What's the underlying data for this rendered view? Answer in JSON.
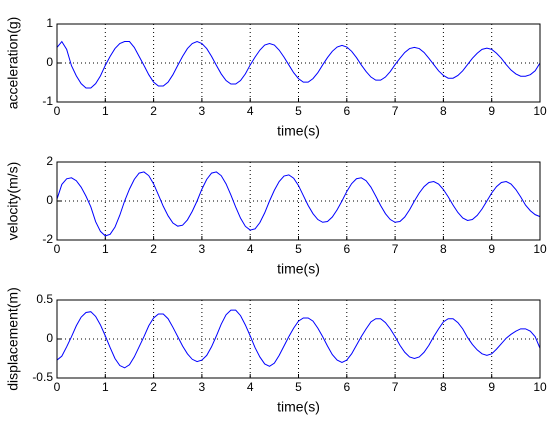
{
  "chart_data": [
    {
      "type": "line",
      "ylabel": "acceleration(g)",
      "xlabel": "time(s)",
      "x": [
        0,
        0.1,
        0.2,
        0.3,
        0.4,
        0.5,
        0.6,
        0.7,
        0.8,
        0.9,
        1,
        1.1,
        1.2,
        1.3,
        1.4,
        1.5,
        1.6,
        1.7,
        1.8,
        1.9,
        2,
        2.1,
        2.2,
        2.3,
        2.4,
        2.5,
        2.6,
        2.7,
        2.8,
        2.9,
        3,
        3.1,
        3.2,
        3.3,
        3.4,
        3.5,
        3.6,
        3.7,
        3.8,
        3.9,
        4,
        4.1,
        4.2,
        4.3,
        4.4,
        4.5,
        4.6,
        4.7,
        4.8,
        4.9,
        5,
        5.1,
        5.2,
        5.3,
        5.4,
        5.5,
        5.6,
        5.7,
        5.8,
        5.9,
        6,
        6.1,
        6.2,
        6.3,
        6.4,
        6.5,
        6.6,
        6.7,
        6.8,
        6.9,
        7,
        7.1,
        7.2,
        7.3,
        7.4,
        7.5,
        7.6,
        7.7,
        7.8,
        7.9,
        8,
        8.1,
        8.2,
        8.3,
        8.4,
        8.5,
        8.6,
        8.7,
        8.8,
        8.9,
        9,
        9.1,
        9.2,
        9.3,
        9.4,
        9.5,
        9.6,
        9.7,
        9.8,
        9.9,
        10
      ],
      "series": [
        {
          "color": "#0000ff",
          "values": [
            0.4,
            0.55,
            0.35,
            -0.07,
            -0.33,
            -0.53,
            -0.64,
            -0.64,
            -0.53,
            -0.33,
            -0.06,
            0.17,
            0.37,
            0.5,
            0.55,
            0.55,
            0.4,
            0.17,
            -0.06,
            -0.3,
            -0.49,
            -0.59,
            -0.59,
            -0.49,
            -0.3,
            -0.06,
            0.17,
            0.37,
            0.5,
            0.55,
            0.5,
            0.37,
            0.17,
            -0.06,
            -0.28,
            -0.45,
            -0.54,
            -0.54,
            -0.45,
            -0.28,
            -0.05,
            0.15,
            0.33,
            0.46,
            0.5,
            0.46,
            0.33,
            0.15,
            -0.05,
            -0.25,
            -0.4,
            -0.49,
            -0.49,
            -0.4,
            -0.25,
            -0.05,
            0.14,
            0.3,
            0.41,
            0.45,
            0.41,
            0.3,
            0.14,
            -0.05,
            -0.22,
            -0.36,
            -0.44,
            -0.44,
            -0.36,
            -0.22,
            -0.04,
            0.12,
            0.27,
            0.37,
            0.4,
            0.37,
            0.27,
            0.12,
            -0.04,
            -0.2,
            -0.32,
            -0.39,
            -0.39,
            -0.32,
            -0.2,
            -0.04,
            0.12,
            0.25,
            0.35,
            0.38,
            0.35,
            0.25,
            0.12,
            -0.04,
            -0.18,
            -0.28,
            -0.34,
            -0.34,
            -0.3,
            -0.2,
            0.0
          ]
        }
      ],
      "xlim": [
        0,
        10
      ],
      "xticks": [
        0,
        1,
        2,
        3,
        4,
        5,
        6,
        7,
        8,
        9,
        10
      ],
      "ylim": [
        -1,
        1
      ],
      "yticks": [
        -1,
        0,
        1
      ],
      "grid": true
    },
    {
      "type": "line",
      "ylabel": "velocity(m/s)",
      "xlabel": "time(s)",
      "x": [
        0,
        0.1,
        0.2,
        0.3,
        0.4,
        0.5,
        0.6,
        0.7,
        0.8,
        0.9,
        1,
        1.1,
        1.2,
        1.3,
        1.4,
        1.5,
        1.6,
        1.7,
        1.8,
        1.9,
        2,
        2.1,
        2.2,
        2.3,
        2.4,
        2.5,
        2.6,
        2.7,
        2.8,
        2.9,
        3,
        3.1,
        3.2,
        3.3,
        3.4,
        3.5,
        3.6,
        3.7,
        3.8,
        3.9,
        4,
        4.1,
        4.2,
        4.3,
        4.4,
        4.5,
        4.6,
        4.7,
        4.8,
        4.9,
        5,
        5.1,
        5.2,
        5.3,
        5.4,
        5.5,
        5.6,
        5.7,
        5.8,
        5.9,
        6,
        6.1,
        6.2,
        6.3,
        6.4,
        6.5,
        6.6,
        6.7,
        6.8,
        6.9,
        7,
        7.1,
        7.2,
        7.3,
        7.4,
        7.5,
        7.6,
        7.7,
        7.8,
        7.9,
        8,
        8.1,
        8.2,
        8.3,
        8.4,
        8.5,
        8.6,
        8.7,
        8.8,
        8.9,
        9,
        9.1,
        9.2,
        9.3,
        9.4,
        9.5,
        9.6,
        9.7,
        9.8,
        9.9,
        10
      ],
      "series": [
        {
          "color": "#0000ff",
          "values": [
            0.1,
            0.85,
            1.14,
            1.19,
            1.04,
            0.71,
            0.25,
            -0.3,
            -1.06,
            -1.56,
            -1.79,
            -1.71,
            -1.34,
            -0.73,
            0.0,
            0.61,
            1.11,
            1.43,
            1.49,
            1.3,
            0.88,
            0.31,
            -0.27,
            -0.76,
            -1.13,
            -1.29,
            -1.24,
            -0.97,
            -0.53,
            0.0,
            0.61,
            1.11,
            1.43,
            1.49,
            1.3,
            0.88,
            0.31,
            -0.31,
            -0.88,
            -1.3,
            -1.49,
            -1.43,
            -1.11,
            -0.61,
            0.0,
            0.55,
            1.0,
            1.28,
            1.34,
            1.17,
            0.79,
            0.28,
            -0.23,
            -0.65,
            -0.95,
            -1.09,
            -1.05,
            -0.82,
            -0.45,
            0.0,
            0.49,
            0.89,
            1.14,
            1.19,
            1.04,
            0.71,
            0.25,
            -0.23,
            -0.65,
            -0.95,
            -1.09,
            -1.05,
            -0.82,
            -0.45,
            0.0,
            0.41,
            0.74,
            0.95,
            1.0,
            0.87,
            0.59,
            0.21,
            -0.21,
            -0.59,
            -0.87,
            -1.0,
            -0.95,
            -0.74,
            -0.41,
            0.0,
            0.41,
            0.74,
            0.95,
            1.0,
            0.87,
            0.59,
            0.21,
            -0.21,
            -0.5,
            -0.7,
            -0.8
          ]
        }
      ],
      "xlim": [
        0,
        10
      ],
      "xticks": [
        0,
        1,
        2,
        3,
        4,
        5,
        6,
        7,
        8,
        9,
        10
      ],
      "ylim": [
        -2,
        2
      ],
      "yticks": [
        -2,
        0,
        2
      ],
      "grid": true
    },
    {
      "type": "line",
      "ylabel": "displacement(m)",
      "xlabel": "time(s)",
      "x": [
        0,
        0.1,
        0.2,
        0.3,
        0.4,
        0.5,
        0.6,
        0.7,
        0.8,
        0.9,
        1,
        1.1,
        1.2,
        1.3,
        1.4,
        1.5,
        1.6,
        1.7,
        1.8,
        1.9,
        2,
        2.1,
        2.2,
        2.3,
        2.4,
        2.5,
        2.6,
        2.7,
        2.8,
        2.9,
        3,
        3.1,
        3.2,
        3.3,
        3.4,
        3.5,
        3.6,
        3.7,
        3.8,
        3.9,
        4,
        4.1,
        4.2,
        4.3,
        4.4,
        4.5,
        4.6,
        4.7,
        4.8,
        4.9,
        5,
        5.1,
        5.2,
        5.3,
        5.4,
        5.5,
        5.6,
        5.7,
        5.8,
        5.9,
        6,
        6.1,
        6.2,
        6.3,
        6.4,
        6.5,
        6.6,
        6.7,
        6.8,
        6.9,
        7,
        7.1,
        7.2,
        7.3,
        7.4,
        7.5,
        7.6,
        7.7,
        7.8,
        7.9,
        8,
        8.1,
        8.2,
        8.3,
        8.4,
        8.5,
        8.6,
        8.7,
        8.8,
        8.9,
        9,
        9.1,
        9.2,
        9.3,
        9.4,
        9.5,
        9.6,
        9.7,
        9.8,
        9.9,
        10
      ],
      "series": [
        {
          "color": "#0000ff",
          "values": [
            -0.27,
            -0.22,
            -0.1,
            0.03,
            0.17,
            0.28,
            0.34,
            0.35,
            0.29,
            0.18,
            0.04,
            -0.11,
            -0.25,
            -0.34,
            -0.37,
            -0.33,
            -0.23,
            -0.1,
            0.03,
            0.17,
            0.27,
            0.32,
            0.32,
            0.26,
            0.15,
            0.03,
            -0.09,
            -0.19,
            -0.26,
            -0.29,
            -0.27,
            -0.21,
            -0.1,
            0.04,
            0.19,
            0.31,
            0.37,
            0.37,
            0.3,
            0.18,
            0.04,
            -0.11,
            -0.23,
            -0.32,
            -0.35,
            -0.31,
            -0.21,
            -0.09,
            0.03,
            0.14,
            0.23,
            0.27,
            0.27,
            0.23,
            0.14,
            0.03,
            -0.09,
            -0.2,
            -0.27,
            -0.3,
            -0.27,
            -0.19,
            -0.08,
            0.03,
            0.13,
            0.22,
            0.26,
            0.26,
            0.21,
            0.13,
            0.03,
            -0.08,
            -0.17,
            -0.23,
            -0.25,
            -0.23,
            -0.17,
            -0.08,
            0.03,
            0.13,
            0.22,
            0.26,
            0.26,
            0.21,
            0.13,
            0.02,
            -0.07,
            -0.14,
            -0.19,
            -0.21,
            -0.19,
            -0.13,
            -0.06,
            0.01,
            0.06,
            0.1,
            0.13,
            0.13,
            0.1,
            0.03,
            -0.12
          ]
        }
      ],
      "xlim": [
        0,
        10
      ],
      "xticks": [
        0,
        1,
        2,
        3,
        4,
        5,
        6,
        7,
        8,
        9,
        10
      ],
      "ylim": [
        -0.5,
        0.5
      ],
      "yticks": [
        -0.5,
        0,
        0.5
      ],
      "grid": true
    }
  ]
}
